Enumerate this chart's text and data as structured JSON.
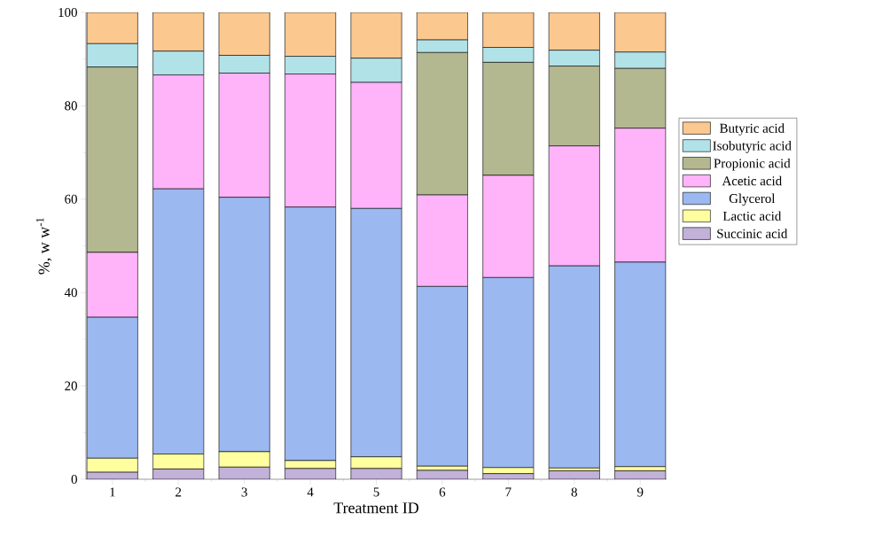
{
  "chart_data": {
    "type": "bar",
    "stacked": true,
    "xlabel": "Treatment ID",
    "ylabel": "%, w w$^{-1}$",
    "categories": [
      "1",
      "2",
      "3",
      "4",
      "5",
      "6",
      "7",
      "8",
      "9"
    ],
    "ylim": [
      0,
      100
    ],
    "yticks": [
      0,
      20,
      40,
      60,
      80,
      100
    ],
    "legend": "right",
    "series": [
      {
        "name": "Succinic acid",
        "color": "#c2b1d8",
        "values": [
          1.5,
          2.2,
          2.6,
          2.3,
          2.3,
          1.9,
          1.2,
          1.8,
          1.8
        ]
      },
      {
        "name": "Lactic acid",
        "color": "#ffff9f",
        "values": [
          3.0,
          3.2,
          3.3,
          1.7,
          2.5,
          0.9,
          1.3,
          0.6,
          0.9
        ]
      },
      {
        "name": "Glycerol",
        "color": "#9cb8f0",
        "values": [
          30.2,
          56.8,
          54.5,
          54.3,
          53.2,
          38.5,
          40.7,
          43.3,
          43.8
        ]
      },
      {
        "name": "Acetic acid",
        "color": "#ffb3f8",
        "values": [
          13.9,
          24.4,
          26.6,
          28.5,
          27.0,
          19.6,
          21.9,
          25.7,
          28.7
        ]
      },
      {
        "name": "Propionic acid",
        "color": "#b3b890",
        "values": [
          39.7,
          0,
          0,
          0,
          0,
          30.5,
          24.2,
          17.1,
          12.8
        ]
      },
      {
        "name": "Isobutyric acid",
        "color": "#b1e2e8",
        "values": [
          5.0,
          5.1,
          3.8,
          3.8,
          5.2,
          2.7,
          3.2,
          3.4,
          3.5
        ]
      },
      {
        "name": "Butyric acid",
        "color": "#fbc890",
        "values": [
          6.7,
          8.3,
          9.2,
          9.4,
          9.8,
          5.9,
          7.5,
          8.1,
          8.5
        ]
      }
    ]
  }
}
